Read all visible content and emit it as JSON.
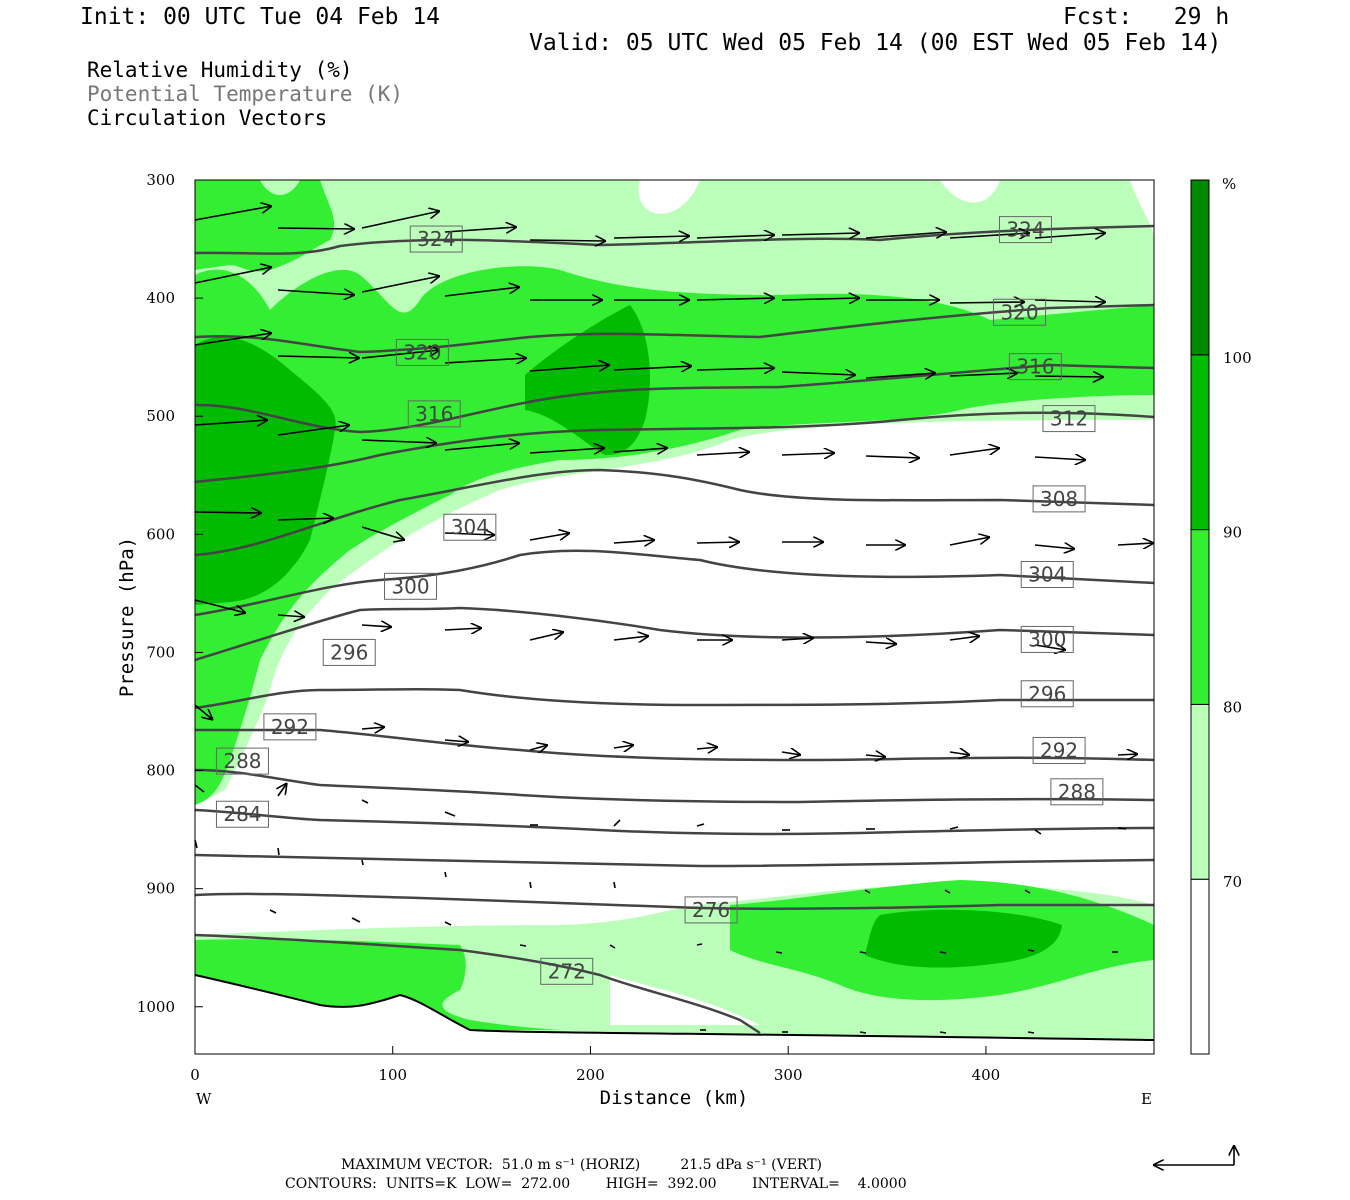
{
  "header": {
    "init": "Init: 00 UTC Tue 04 Feb 14",
    "fcst": "Fcst:   29 h",
    "valid": "Valid: 05 UTC Wed 05 Feb 14 (00 EST Wed 05 Feb 14)"
  },
  "legend_lines": [
    {
      "text": "Relative Humidity (%)",
      "color": "#000000"
    },
    {
      "text": "Potential Temperature (K)",
      "color": "#777777"
    },
    {
      "text": "Circulation Vectors",
      "color": "#000000"
    }
  ],
  "footer": {
    "line1": "MAXIMUM VECTOR:  51.0 m s⁻¹ (HORIZ)         21.5 dPa s⁻¹ (VERT)",
    "line2": "CONTOURS:  UNITS=K  LOW=  272.00        HIGH=  392.00        INTERVAL=    4.0000"
  },
  "chart_data": {
    "type": "cross-section",
    "xlabel": "Distance (km)",
    "ylabel": "Pressure (hPa)",
    "x_ticks": [
      0,
      100,
      200,
      300,
      400
    ],
    "y_ticks": [
      300,
      400,
      500,
      600,
      700,
      800,
      900,
      1000
    ],
    "xlim": [
      0,
      485
    ],
    "ylim": [
      300,
      1040
    ],
    "x_end_labels": {
      "left": "W",
      "right": "E"
    },
    "colorbar": {
      "unit": "%",
      "levels": [
        70,
        80,
        90,
        100
      ],
      "colors": [
        "#ffffff",
        "#bbffbb",
        "#33ee33",
        "#00bb00",
        "#008800"
      ]
    },
    "contour_labels": [
      {
        "value": "324",
        "x": 122,
        "p": 350
      },
      {
        "value": "324",
        "x": 420,
        "p": 342
      },
      {
        "value": "320",
        "x": 417,
        "p": 412
      },
      {
        "value": "320",
        "x": 115,
        "p": 446
      },
      {
        "value": "316",
        "x": 121,
        "p": 498
      },
      {
        "value": "316",
        "x": 425,
        "p": 458
      },
      {
        "value": "312",
        "x": 442,
        "p": 502
      },
      {
        "value": "308",
        "x": 437,
        "p": 570
      },
      {
        "value": "304",
        "x": 139,
        "p": 594
      },
      {
        "value": "304",
        "x": 431,
        "p": 634
      },
      {
        "value": "300",
        "x": 109,
        "p": 644
      },
      {
        "value": "300",
        "x": 431,
        "p": 689
      },
      {
        "value": "296",
        "x": 78,
        "p": 700
      },
      {
        "value": "296",
        "x": 431,
        "p": 735
      },
      {
        "value": "292",
        "x": 48,
        "p": 763
      },
      {
        "value": "292",
        "x": 437,
        "p": 783
      },
      {
        "value": "288",
        "x": 24,
        "p": 792
      },
      {
        "value": "288",
        "x": 446,
        "p": 818
      },
      {
        "value": "284",
        "x": 24,
        "p": 837
      },
      {
        "value": "276",
        "x": 261,
        "p": 918
      },
      {
        "value": "272",
        "x": 188,
        "p": 970
      }
    ]
  }
}
